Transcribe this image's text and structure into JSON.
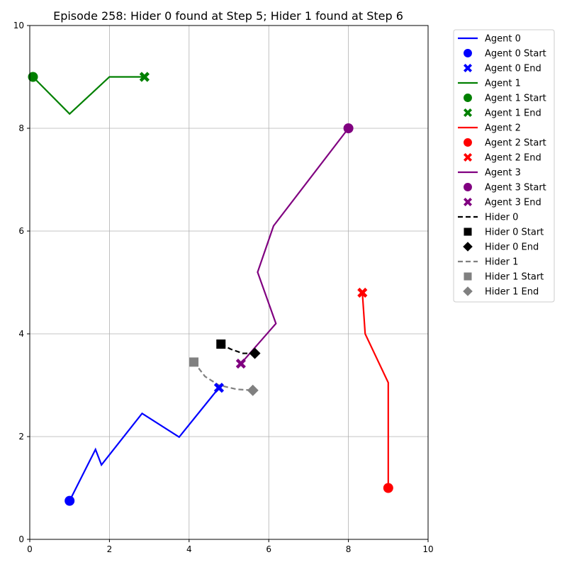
{
  "chart_data": {
    "type": "line",
    "title": "Episode 258: Hider 0 found at Step 5; Hider 1 found at Step 6",
    "xlabel": "",
    "ylabel": "",
    "xlim": [
      0,
      10
    ],
    "ylim": [
      0,
      10
    ],
    "xticks": [
      "0",
      "2",
      "4",
      "6",
      "8",
      "10"
    ],
    "yticks": [
      "0",
      "2",
      "4",
      "6",
      "8",
      "10"
    ],
    "grid": true,
    "legend_position": "outside-right",
    "series": [
      {
        "name": "Agent 0",
        "color": "#0000ff",
        "dash": "solid",
        "start_marker": "circle",
        "end_marker": "x",
        "points": [
          [
            1.0,
            0.75
          ],
          [
            1.65,
            1.75
          ],
          [
            1.8,
            1.45
          ],
          [
            2.82,
            2.45
          ],
          [
            3.75,
            1.99
          ],
          [
            4.75,
            2.95
          ]
        ]
      },
      {
        "name": "Agent 1",
        "color": "#008000",
        "dash": "solid",
        "start_marker": "circle",
        "end_marker": "x",
        "points": [
          [
            0.08,
            9.0
          ],
          [
            1.0,
            8.28
          ],
          [
            2.0,
            9.0
          ],
          [
            2.88,
            9.0
          ]
        ]
      },
      {
        "name": "Agent 2",
        "color": "#ff0000",
        "dash": "solid",
        "start_marker": "circle",
        "end_marker": "x",
        "points": [
          [
            9.0,
            1.0
          ],
          [
            9.0,
            3.05
          ],
          [
            8.42,
            4.0
          ],
          [
            8.35,
            4.8
          ]
        ]
      },
      {
        "name": "Agent 3",
        "color": "#800080",
        "dash": "solid",
        "start_marker": "circle",
        "end_marker": "x",
        "points": [
          [
            8.0,
            8.0
          ],
          [
            6.12,
            6.1
          ],
          [
            5.72,
            5.2
          ],
          [
            6.18,
            4.2
          ],
          [
            5.3,
            3.42
          ]
        ]
      },
      {
        "name": "Hider 0",
        "color": "#000000",
        "dash": "dashed",
        "start_marker": "square",
        "end_marker": "diamond",
        "points": [
          [
            4.8,
            3.8
          ],
          [
            5.05,
            3.7
          ],
          [
            5.35,
            3.62
          ],
          [
            5.65,
            3.62
          ]
        ]
      },
      {
        "name": "Hider 1",
        "color": "#808080",
        "dash": "dashed",
        "start_marker": "square",
        "end_marker": "diamond",
        "points": [
          [
            4.12,
            3.45
          ],
          [
            4.4,
            3.17
          ],
          [
            4.75,
            3.0
          ],
          [
            5.2,
            2.92
          ],
          [
            5.6,
            2.9
          ]
        ]
      }
    ],
    "legend": [
      {
        "label": "Agent 0",
        "kind": "line",
        "color": "#0000ff",
        "dash": "solid"
      },
      {
        "label": "Agent 0 Start",
        "kind": "circle",
        "color": "#0000ff"
      },
      {
        "label": "Agent 0 End",
        "kind": "x",
        "color": "#0000ff"
      },
      {
        "label": "Agent 1",
        "kind": "line",
        "color": "#008000",
        "dash": "solid"
      },
      {
        "label": "Agent 1 Start",
        "kind": "circle",
        "color": "#008000"
      },
      {
        "label": "Agent 1 End",
        "kind": "x",
        "color": "#008000"
      },
      {
        "label": "Agent 2",
        "kind": "line",
        "color": "#ff0000",
        "dash": "solid"
      },
      {
        "label": "Agent 2 Start",
        "kind": "circle",
        "color": "#ff0000"
      },
      {
        "label": "Agent 2 End",
        "kind": "x",
        "color": "#ff0000"
      },
      {
        "label": "Agent 3",
        "kind": "line",
        "color": "#800080",
        "dash": "solid"
      },
      {
        "label": "Agent 3 Start",
        "kind": "circle",
        "color": "#800080"
      },
      {
        "label": "Agent 3 End",
        "kind": "x",
        "color": "#800080"
      },
      {
        "label": "Hider 0",
        "kind": "line",
        "color": "#000000",
        "dash": "dashed"
      },
      {
        "label": "Hider 0 Start",
        "kind": "square",
        "color": "#000000"
      },
      {
        "label": "Hider 0 End",
        "kind": "diamond",
        "color": "#000000"
      },
      {
        "label": "Hider 1",
        "kind": "line",
        "color": "#808080",
        "dash": "dashed"
      },
      {
        "label": "Hider 1 Start",
        "kind": "square",
        "color": "#808080"
      },
      {
        "label": "Hider 1 End",
        "kind": "diamond",
        "color": "#808080"
      }
    ]
  }
}
